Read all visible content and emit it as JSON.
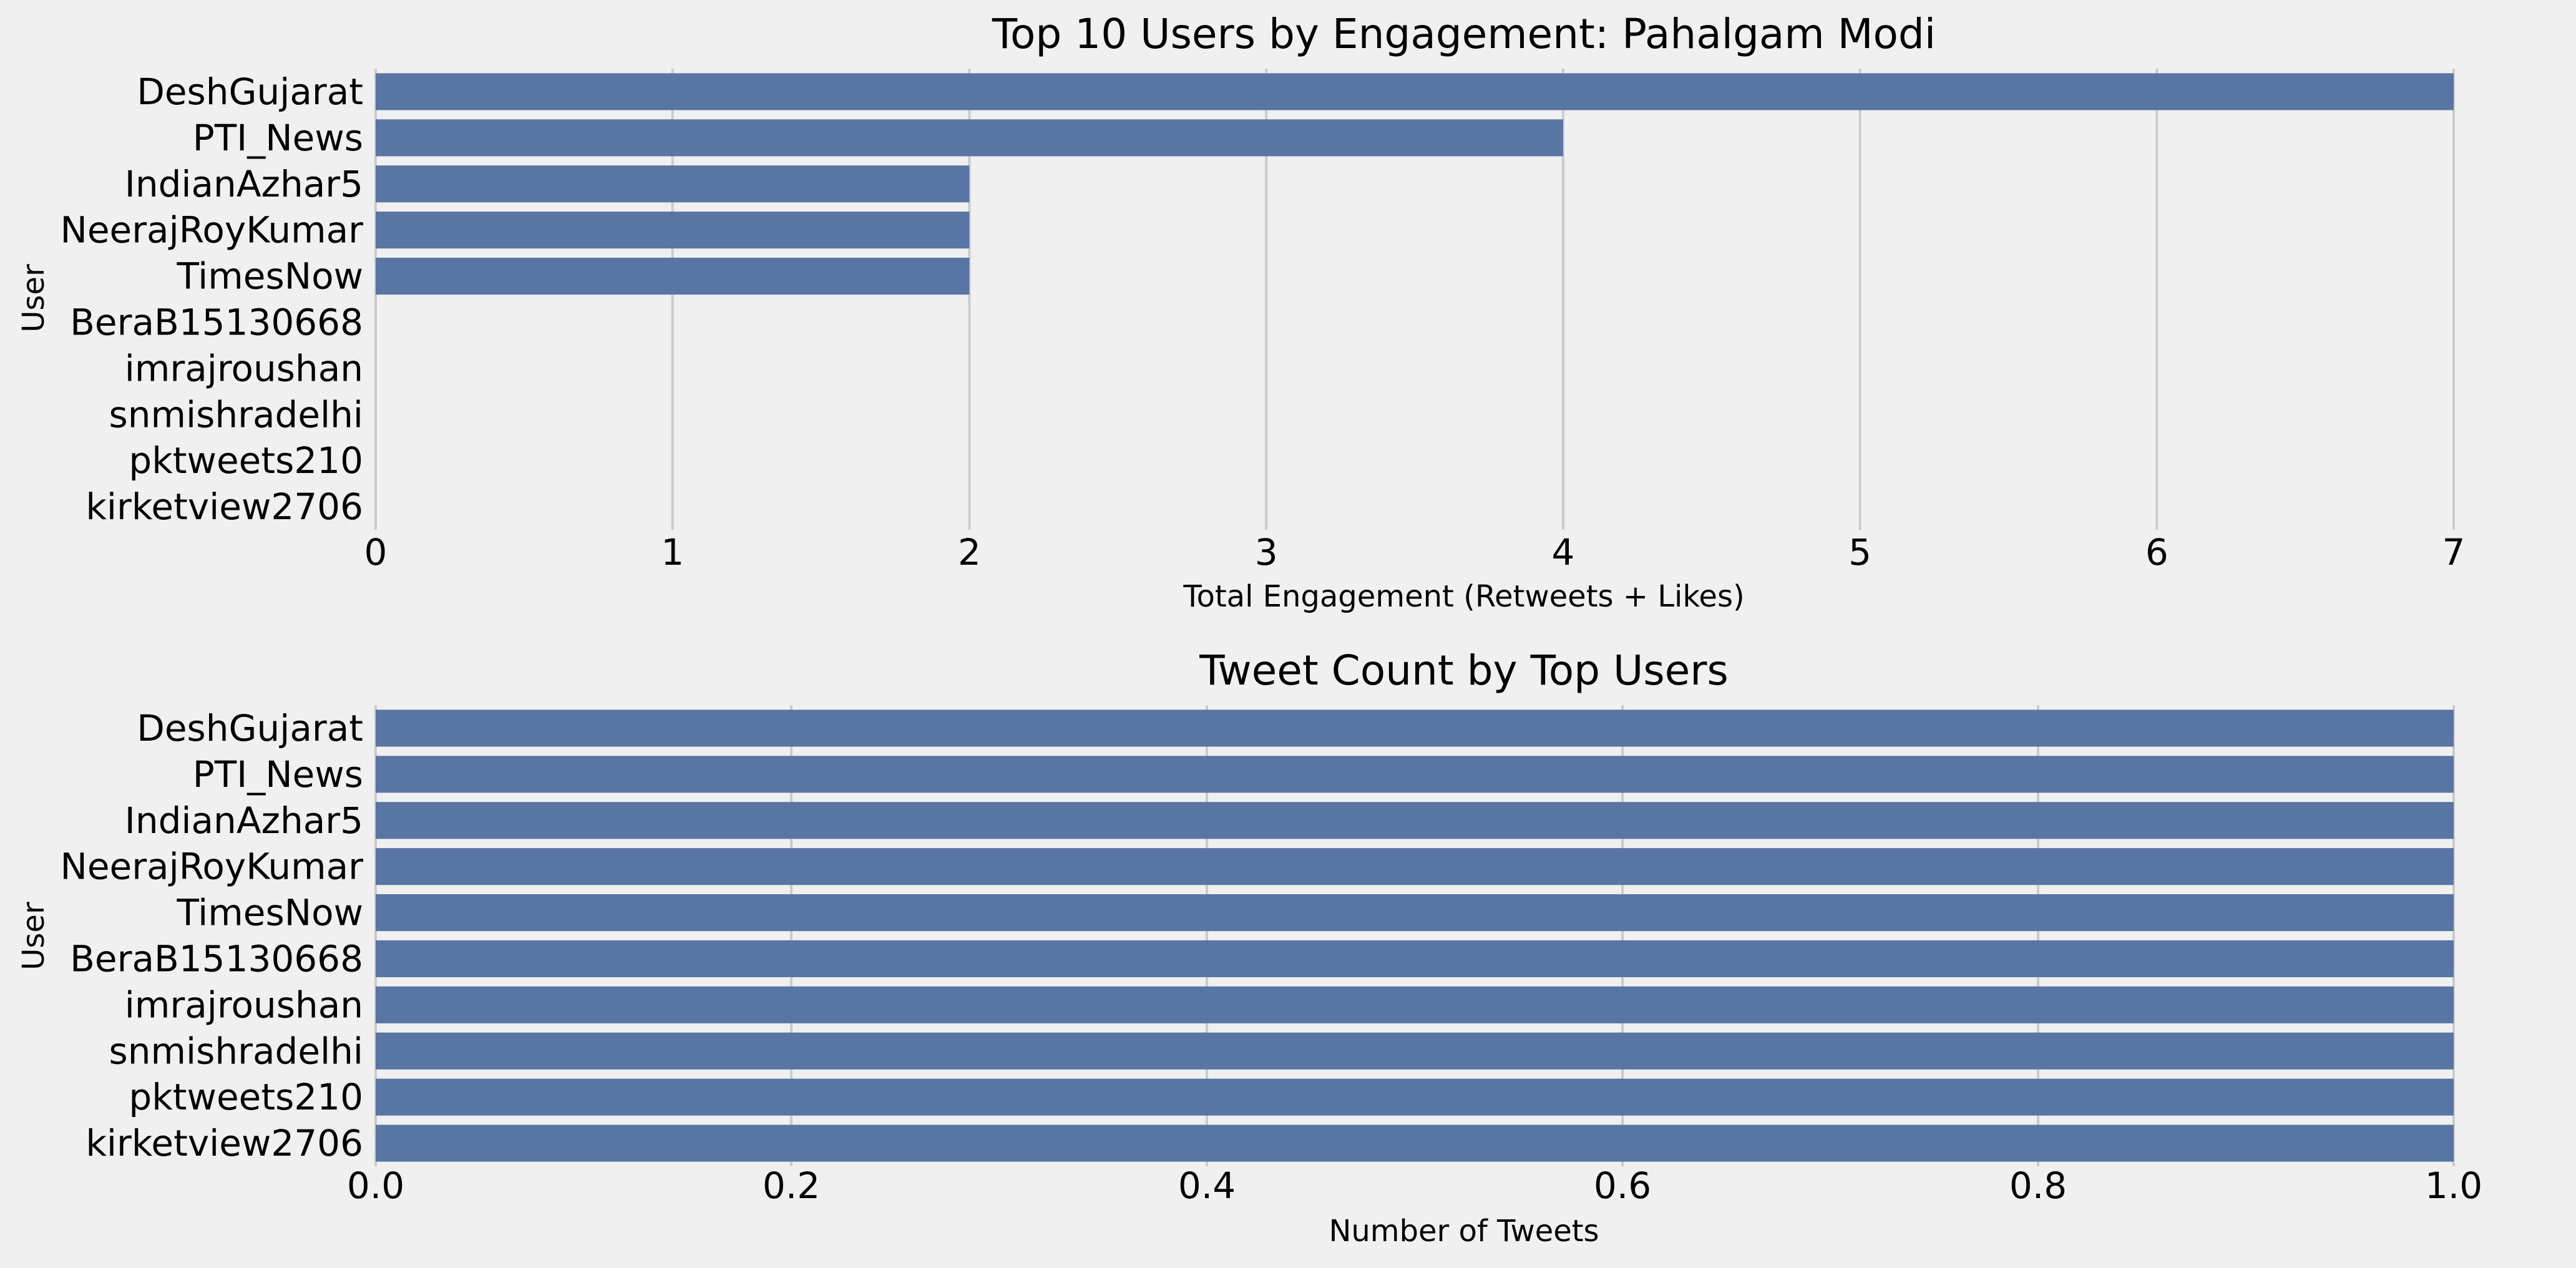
{
  "colors": {
    "background": "#f0f0f0",
    "bar": "#5975a4",
    "grid": "#cbcbcb"
  },
  "chart_data": [
    {
      "type": "bar",
      "orientation": "horizontal",
      "title": "Top 10 Users by Engagement: Pahalgam Modi",
      "xlabel": "Total Engagement (Retweets + Likes)",
      "ylabel": "User",
      "categories": [
        "DeshGujarat",
        "PTI_News",
        "IndianAzhar5",
        "NeerajRoyKumar",
        "TimesNow",
        "BeraB15130668",
        "imrajroushan",
        "snmishradelhi",
        "pktweets210",
        "kirketview2706"
      ],
      "values": [
        7,
        4,
        2,
        2,
        2,
        0,
        0,
        0,
        0,
        0
      ],
      "xlim": [
        0,
        7
      ],
      "xticks": [
        "0",
        "1",
        "2",
        "3",
        "4",
        "5",
        "6",
        "7"
      ],
      "grid": "vertical"
    },
    {
      "type": "bar",
      "orientation": "horizontal",
      "title": "Tweet Count by Top Users",
      "xlabel": "Number of Tweets",
      "ylabel": "User",
      "categories": [
        "DeshGujarat",
        "PTI_News",
        "IndianAzhar5",
        "NeerajRoyKumar",
        "TimesNow",
        "BeraB15130668",
        "imrajroushan",
        "snmishradelhi",
        "pktweets210",
        "kirketview2706"
      ],
      "values": [
        1,
        1,
        1,
        1,
        1,
        1,
        1,
        1,
        1,
        1
      ],
      "xlim": [
        0,
        1
      ],
      "xticks": [
        "0.0",
        "0.2",
        "0.4",
        "0.6",
        "0.8",
        "1.0"
      ],
      "grid": "vertical"
    }
  ]
}
